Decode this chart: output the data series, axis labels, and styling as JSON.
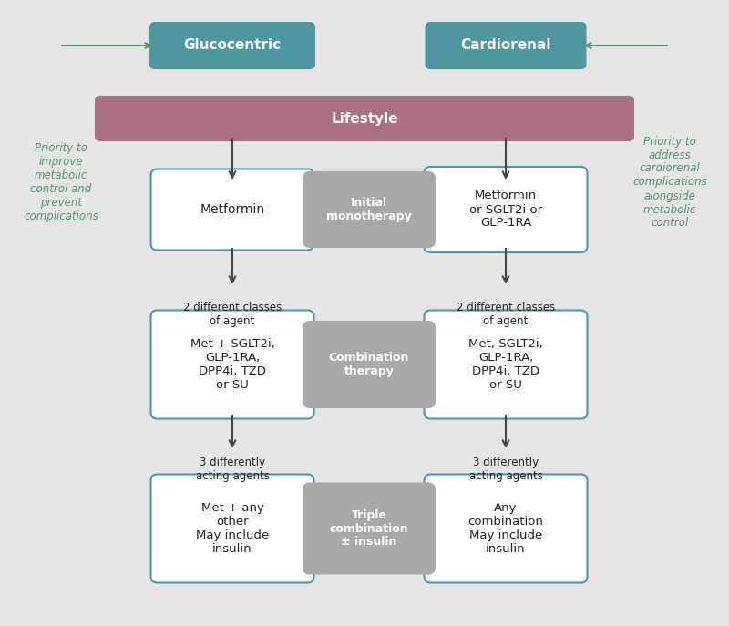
{
  "bg_color": "#e5e5e5",
  "teal_color": "#4e96a0",
  "mauve_color": "#a87080",
  "gray_box_color": "#a8a8a8",
  "white": "#ffffff",
  "green_text": "#5a9070",
  "dark_text": "#222222",
  "arrow_color": "#444444",
  "glucocentric_label": "Glucocentric",
  "cardiorenal_label": "Cardiorenal",
  "lifestyle_label": "Lifestyle",
  "left_priority": "Priority to\nimprove\nmetabolic\ncontrol and\nprevent\ncomplications",
  "right_priority": "Priority to\naddress\ncardiorenal\ncomplications\nalongside\nmetabolic\ncontrol",
  "left_mono_box": "Metformin",
  "center_mono_label": "Initial\nmonotherapy",
  "right_mono_box": "Metformin\nor SGLT2i or\nGLP-1RA",
  "left_combo_text": "2 different classes\nof agent",
  "left_combo_box": "Met + SGLT2i,\nGLP-1RA,\nDPP4i, TZD\nor SU",
  "center_combo_label": "Combination\ntherapy",
  "right_combo_text": "2 different classes\nof agent",
  "right_combo_box": "Met, SGLT2i,\nGLP-1RA,\nDPP4i, TZD\nor SU",
  "left_triple_text": "3 differently\nacting agents",
  "left_triple_box": "Met + any\nother\nMay include\ninsulin",
  "center_triple_label": "Triple\ncombination\n± insulin",
  "right_triple_text": "3 differently\nacting agents",
  "right_triple_box": "Any\ncombination\nMay include\ninsulin"
}
